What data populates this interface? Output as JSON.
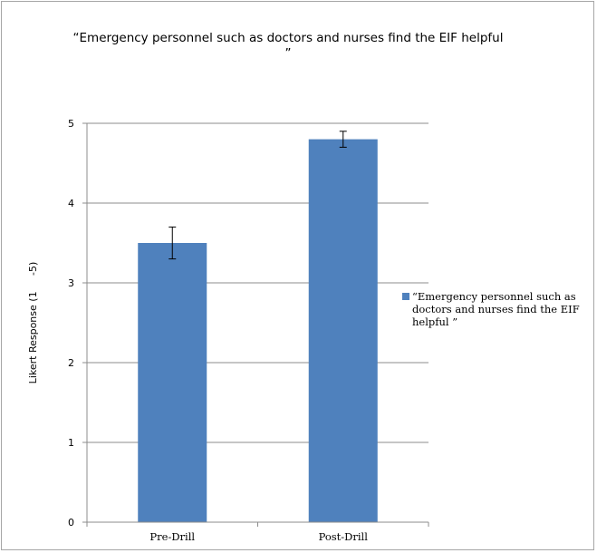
{
  "chart_data": {
    "type": "bar",
    "title": "“Emergency personnel such as doctors and nurses find the EIF helpful ”",
    "xlabel": "",
    "ylabel": "Likert Response (1     -5)",
    "categories": [
      "Pre-Drill",
      "Post-Drill"
    ],
    "series": [
      {
        "name": "“Emergency personnel such as doctors and nurses find the EIF helpful ”",
        "values": [
          3.5,
          4.8
        ],
        "error": [
          0.2,
          0.1
        ],
        "color": "#4f81bd"
      }
    ],
    "ylim": [
      0,
      5
    ],
    "yticks": [
      0,
      1,
      2,
      3,
      4,
      5
    ],
    "grid": true,
    "legend": "right"
  }
}
